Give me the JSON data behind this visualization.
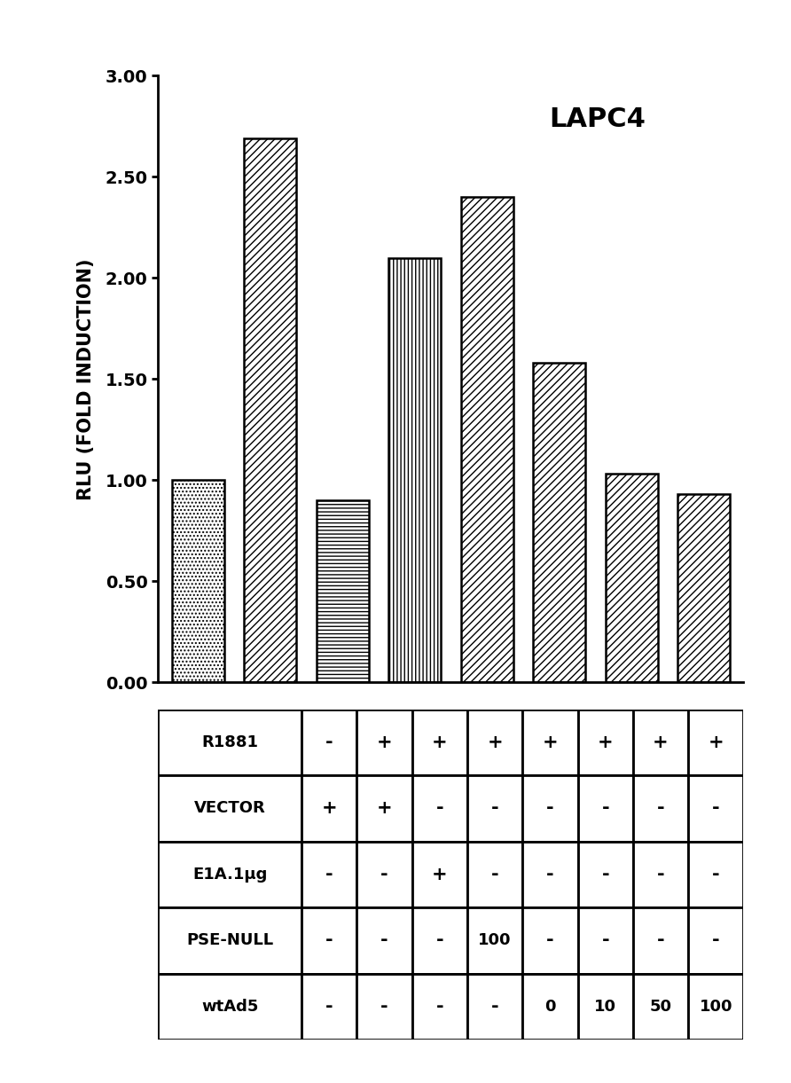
{
  "title": "LAPC4",
  "ylabel": "RLU (FOLD INDUCTION)",
  "ylim": [
    0.0,
    3.0
  ],
  "yticks": [
    0.0,
    0.5,
    1.0,
    1.5,
    2.0,
    2.5,
    3.0
  ],
  "bar_values": [
    1.0,
    2.69,
    0.9,
    2.1,
    2.4,
    1.58,
    1.03,
    0.93
  ],
  "bar_positions": [
    1,
    2,
    3,
    4,
    5,
    6,
    7,
    8
  ],
  "bar_width": 0.72,
  "bar_hatches": [
    "....",
    "////",
    "---",
    "|||",
    "////",
    "////",
    "////",
    "////"
  ],
  "bar_facecolors": [
    "white",
    "white",
    "white",
    "white",
    "white",
    "white",
    "white",
    "white"
  ],
  "table_rows": [
    "R1881",
    "VECTOR",
    "E1A.1μg",
    "PSE-NULL",
    "wtAd5"
  ],
  "table_data": [
    [
      "-",
      "+",
      "+",
      "+",
      "+",
      "+",
      "+",
      "+"
    ],
    [
      "+",
      "+",
      "-",
      "-",
      "-",
      "-",
      "-",
      "-"
    ],
    [
      "-",
      "-",
      "+",
      "-",
      "-",
      "-",
      "-",
      "-"
    ],
    [
      "-",
      "-",
      "-",
      "100",
      "-",
      "-",
      "-",
      "-"
    ],
    [
      "-",
      "-",
      "-",
      "-",
      "0",
      "10",
      "50",
      "100"
    ]
  ],
  "background_color": "#ffffff",
  "title_fontsize": 22,
  "ylabel_fontsize": 15,
  "tick_fontsize": 14,
  "table_fontsize": 13
}
